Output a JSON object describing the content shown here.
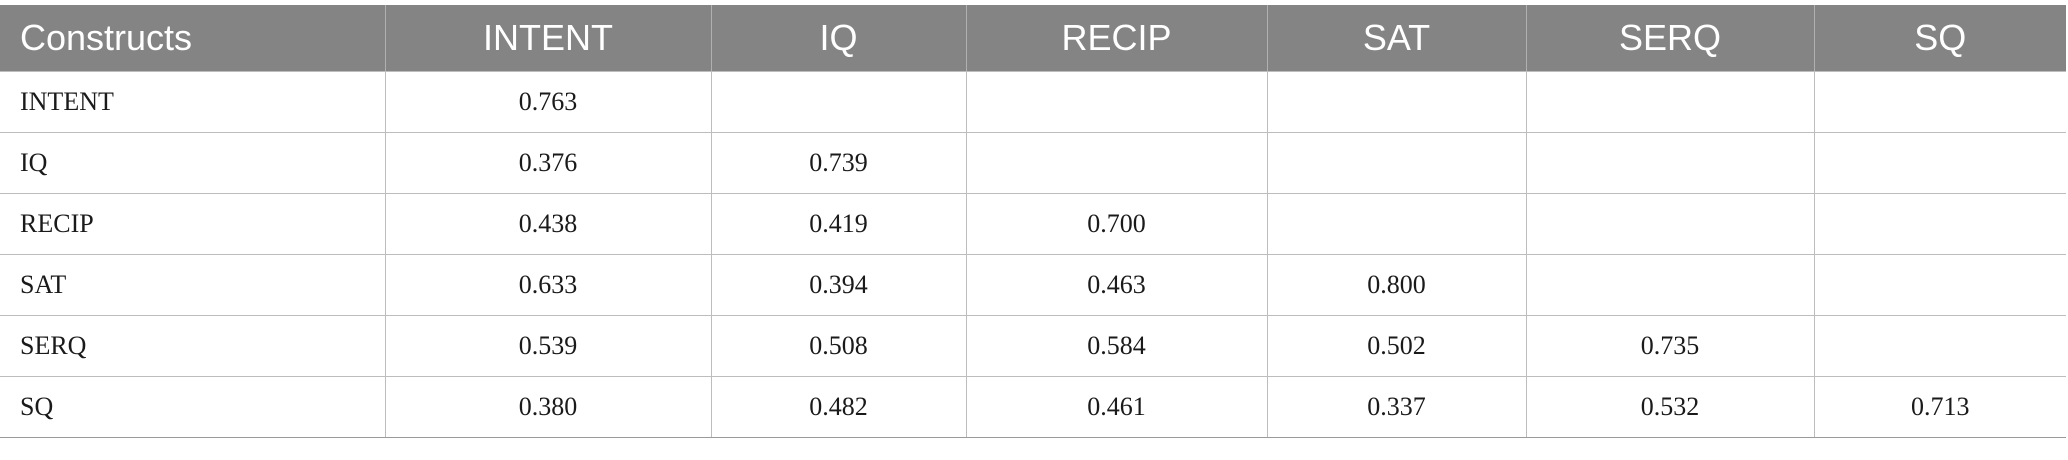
{
  "table": {
    "headers": [
      "Constructs",
      "INTENT",
      "IQ",
      "RECIP",
      "SAT",
      "SERQ",
      "SQ"
    ],
    "rows": [
      {
        "label": "INTENT",
        "cells": [
          "0.763",
          "",
          "",
          "",
          "",
          ""
        ]
      },
      {
        "label": "IQ",
        "cells": [
          "0.376",
          "0.739",
          "",
          "",
          "",
          ""
        ]
      },
      {
        "label": "RECIP",
        "cells": [
          "0.438",
          "0.419",
          "0.700",
          "",
          "",
          ""
        ]
      },
      {
        "label": "SAT",
        "cells": [
          "0.633",
          "0.394",
          "0.463",
          "0.800",
          "",
          ""
        ]
      },
      {
        "label": "SERQ",
        "cells": [
          "0.539",
          "0.508",
          "0.584",
          "0.502",
          "0.735",
          ""
        ]
      },
      {
        "label": "SQ",
        "cells": [
          "0.380",
          "0.482",
          "0.461",
          "0.337",
          "0.532",
          "0.713"
        ]
      }
    ]
  }
}
